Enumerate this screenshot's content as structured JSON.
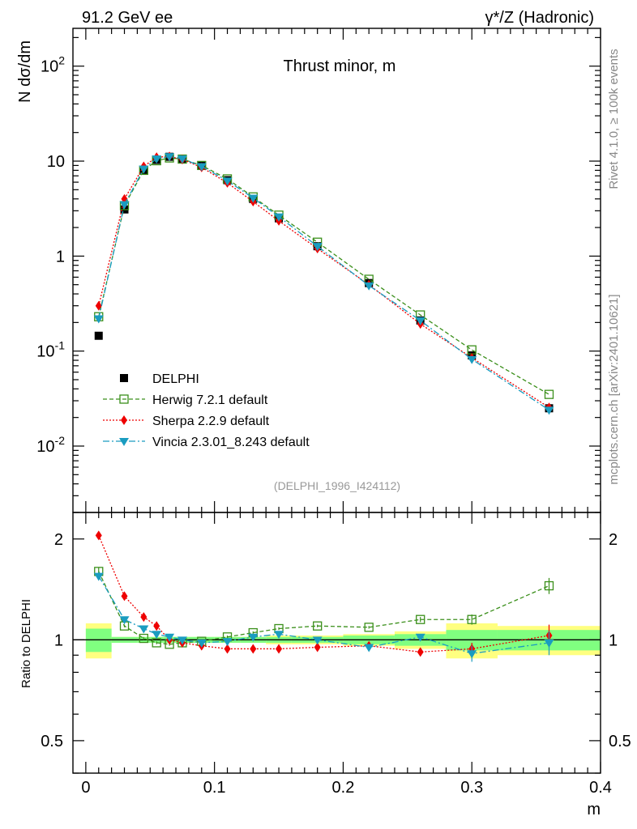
{
  "header": {
    "left": "91.2 GeV ee",
    "right": "γ*/Z (Hadronic)"
  },
  "side_text": {
    "rivet": "Rivet 4.1.0, ≥ 100k events",
    "mcplots": "mcplots.cern.ch [arXiv:2401.10621]"
  },
  "colors": {
    "data": "#000000",
    "herwig": "#3a8f1a",
    "sherpa": "#ee0000",
    "vincia": "#1a9cc0",
    "band_inner": "#80ff80",
    "band_outer": "#ffff80"
  },
  "chart_data": [
    {
      "type": "scatter",
      "title": "Thrust minor, m",
      "ylabel": "N  dσ/dm",
      "yscale": "log",
      "ylim": [
        0.002,
        250
      ],
      "xlim": [
        -0.01,
        0.4
      ],
      "ytick_labels": [
        "10^-2",
        "10^-1",
        "1",
        "10",
        "10^2"
      ],
      "watermark": "(DELPHI_1996_I424112)",
      "legend_position": "bottom-left",
      "x": [
        0.01,
        0.03,
        0.045,
        0.055,
        0.065,
        0.075,
        0.09,
        0.11,
        0.13,
        0.15,
        0.18,
        0.22,
        0.26,
        0.3,
        0.36
      ],
      "series": [
        {
          "name": "DELPHI",
          "marker": "square-filled",
          "values": [
            0.145,
            3.1,
            7.9,
            10.3,
            11.1,
            10.6,
            9.0,
            6.3,
            4.0,
            2.5,
            1.27,
            0.52,
            0.21,
            0.09,
            0.025
          ]
        },
        {
          "name": "Herwig 7.2.1 default",
          "marker": "square-open",
          "values": [
            0.23,
            3.4,
            8.0,
            10.1,
            10.8,
            10.5,
            9.0,
            6.5,
            4.2,
            2.7,
            1.4,
            0.57,
            0.24,
            0.103,
            0.035
          ]
        },
        {
          "name": "Sherpa 2.2.9 default",
          "marker": "diamond",
          "values": [
            0.3,
            4.0,
            8.8,
            11.0,
            11.2,
            10.4,
            8.6,
            5.9,
            3.75,
            2.35,
            1.2,
            0.5,
            0.193,
            0.085,
            0.0255
          ]
        },
        {
          "name": "Vincia 2.3.01_8.243 default",
          "marker": "triangle-down",
          "values": [
            0.22,
            3.5,
            8.3,
            10.6,
            11.2,
            10.6,
            8.8,
            6.2,
            4.1,
            2.6,
            1.27,
            0.49,
            0.21,
            0.082,
            0.024
          ]
        }
      ]
    },
    {
      "type": "scatter",
      "title": "",
      "xlabel": "m",
      "ylabel": "Ratio to DELPHI",
      "yscale": "log",
      "ylim": [
        0.4,
        2.4
      ],
      "xlim": [
        -0.01,
        0.4
      ],
      "yticks": [
        0.5,
        1,
        2
      ],
      "ytick_labels": [
        "0.5",
        "1",
        "2"
      ],
      "xticks": [
        0,
        0.1,
        0.2,
        0.3,
        0.4
      ],
      "xtick_labels": [
        "0",
        "0.1",
        "0.2",
        "0.3",
        "0.4"
      ],
      "x": [
        0.01,
        0.03,
        0.045,
        0.055,
        0.065,
        0.075,
        0.09,
        0.11,
        0.13,
        0.15,
        0.18,
        0.22,
        0.26,
        0.3,
        0.36
      ],
      "series": [
        {
          "name": "Herwig 7.2.1 default",
          "values": [
            1.6,
            1.1,
            1.01,
            0.98,
            0.97,
            0.98,
            0.99,
            1.02,
            1.05,
            1.08,
            1.1,
            1.09,
            1.15,
            1.15,
            1.45
          ],
          "errors": [
            0.04,
            0.01,
            0.01,
            0.01,
            0.01,
            0.01,
            0.01,
            0.01,
            0.01,
            0.01,
            0.01,
            0.01,
            0.02,
            0.04,
            0.08
          ]
        },
        {
          "name": "Sherpa 2.2.9 default",
          "values": [
            2.05,
            1.35,
            1.17,
            1.1,
            1.0,
            0.98,
            0.96,
            0.94,
            0.94,
            0.94,
            0.95,
            0.96,
            0.92,
            0.94,
            1.03
          ],
          "errors": [
            0.05,
            0.01,
            0.01,
            0.01,
            0.01,
            0.01,
            0.01,
            0.01,
            0.01,
            0.01,
            0.01,
            0.01,
            0.02,
            0.04,
            0.08
          ]
        },
        {
          "name": "Vincia 2.3.01_8.243 default",
          "values": [
            1.55,
            1.15,
            1.08,
            1.04,
            1.02,
            1.0,
            0.98,
            0.99,
            1.02,
            1.04,
            1.0,
            0.95,
            1.02,
            0.91,
            0.98
          ],
          "errors": [
            0.04,
            0.01,
            0.01,
            0.01,
            0.01,
            0.01,
            0.01,
            0.01,
            0.01,
            0.01,
            0.01,
            0.01,
            0.02,
            0.05,
            0.08
          ]
        }
      ],
      "uncertainty_band": {
        "bins": [
          [
            0.0,
            0.02
          ],
          [
            0.02,
            0.04
          ],
          [
            0.04,
            0.05
          ],
          [
            0.05,
            0.06
          ],
          [
            0.06,
            0.07
          ],
          [
            0.07,
            0.08
          ],
          [
            0.08,
            0.1
          ],
          [
            0.1,
            0.12
          ],
          [
            0.12,
            0.14
          ],
          [
            0.14,
            0.16
          ],
          [
            0.16,
            0.2
          ],
          [
            0.2,
            0.24
          ],
          [
            0.24,
            0.28
          ],
          [
            0.28,
            0.32
          ],
          [
            0.32,
            0.4
          ]
        ],
        "inner": [
          0.08,
          0.02,
          0.02,
          0.02,
          0.02,
          0.02,
          0.02,
          0.02,
          0.02,
          0.02,
          0.02,
          0.03,
          0.04,
          0.07,
          0.07
        ],
        "outer": [
          0.12,
          0.02,
          0.02,
          0.02,
          0.02,
          0.02,
          0.02,
          0.02,
          0.02,
          0.03,
          0.03,
          0.04,
          0.06,
          0.12,
          0.1
        ]
      }
    }
  ]
}
